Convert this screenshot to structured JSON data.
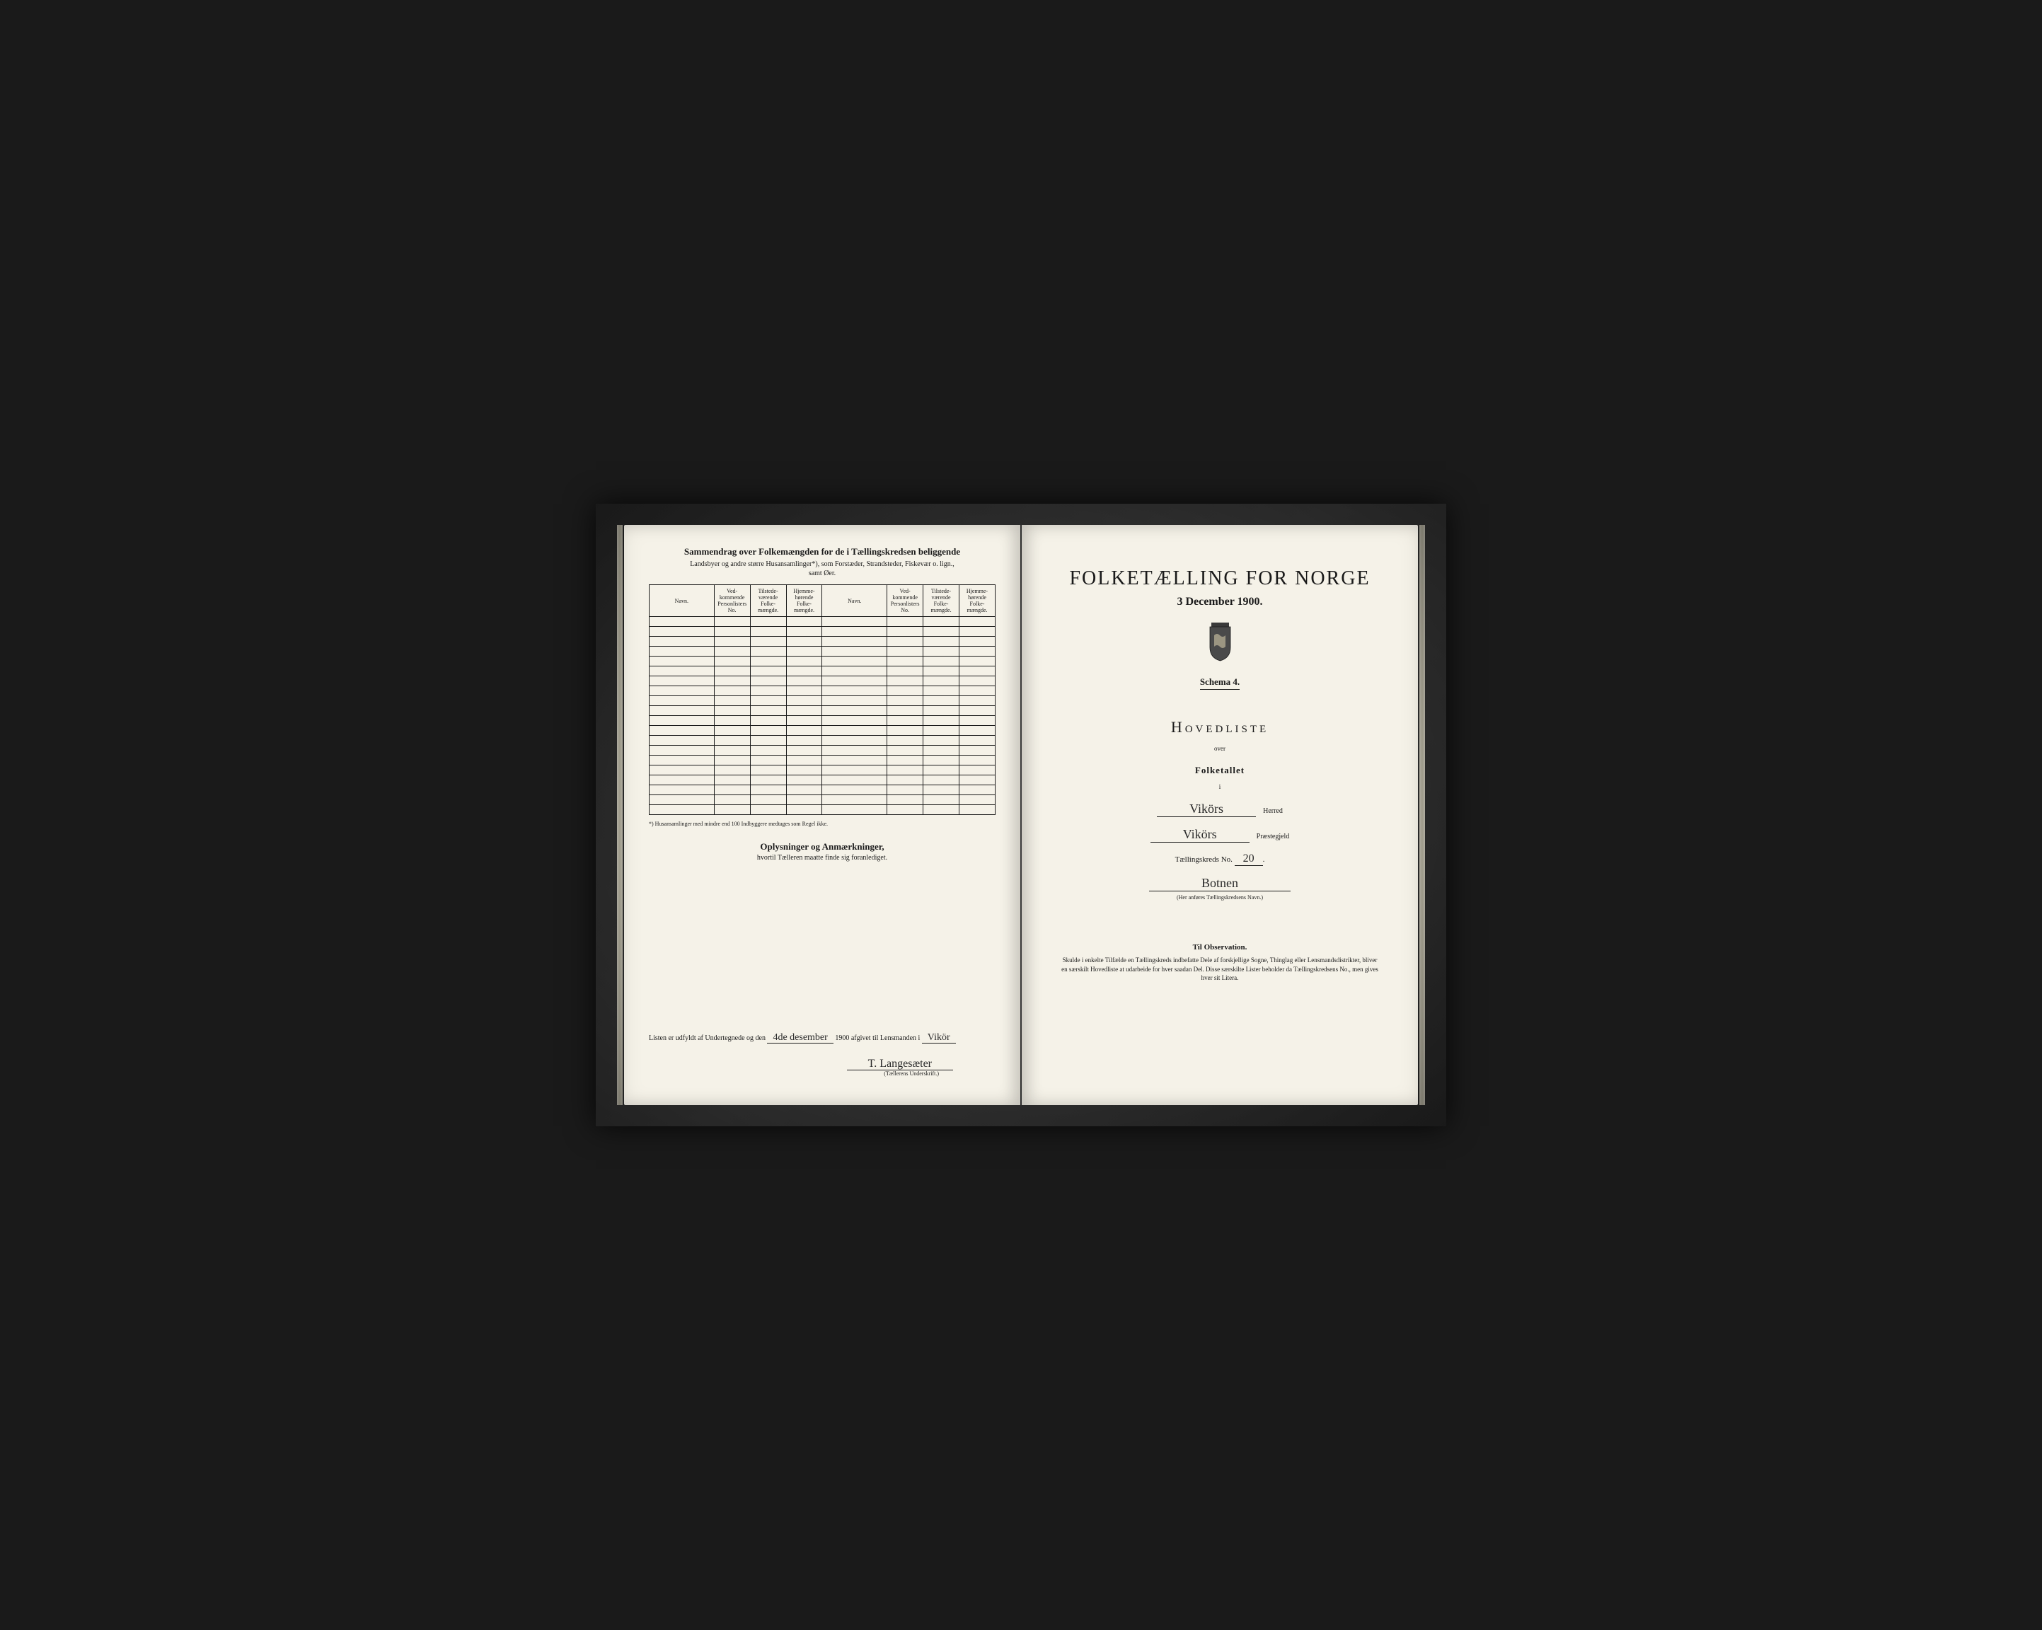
{
  "left_page": {
    "title": "Sammendrag over Folkemængden for de i Tællingskredsen beliggende",
    "subtitle1": "Landsbyer og andre større Husansamlinger*), som Forstæder, Strandsteder, Fiskevær o. lign.,",
    "subtitle2": "samt Øer.",
    "table": {
      "headers": {
        "navn": "Navn.",
        "vedkommende": "Ved-kommende Personlisters No.",
        "tilstede": "Tilstede-værende Folke-mængde.",
        "hjemme": "Hjemme-hørende Folke-mængde."
      },
      "row_count": 20
    },
    "footnote": "*) Husansamlinger med mindre end 100 Indbyggere medtages som Regel ikke.",
    "oplysninger_title": "Oplysninger og Anmærkninger,",
    "oplysninger_sub": "hvortil Tælleren maatte finde sig foranlediget.",
    "signature_prefix": "Listen er udfyldt af Undertegnede og den",
    "signature_date": "4de desember",
    "signature_year": "1900",
    "signature_mid": "afgivet til Lensmanden i",
    "signature_place": "Vikör",
    "signature_name": "T. Langesæter",
    "signature_label": "(Tællerens Underskrift.)"
  },
  "right_page": {
    "main_title": "FOLKETÆLLING FOR NORGE",
    "main_date": "3 December 1900.",
    "schema": "Schema 4.",
    "hovedliste": "Hovedliste",
    "over": "over",
    "folketallet": "Folketallet",
    "i": "i",
    "herred_value": "Vikörs",
    "herred_label": "Herred",
    "praestegjeld_value": "Vikörs",
    "praestegjeld_label": "Præstegjeld",
    "kreds_prefix": "Tællingskreds No.",
    "kreds_no": "20",
    "kreds_name": "Botnen",
    "kreds_caption": "(Her anføres Tællingskredsens Navn.)",
    "observation_title": "Til Observation.",
    "observation_text": "Skulde i enkelte Tilfælde en Tællingskreds indbefatte Dele af forskjellige Sogne, Thinglag eller Lensmandsdistrikter, bliver en særskilt Hovedliste at udarbeide for hver saadan Del. Disse særskilte Lister beholder da Tællingskredsens No., men gives hver sit Litera."
  },
  "styling": {
    "page_bg": "#f5f2e8",
    "frame_bg": "#1a1a1a",
    "text_color": "#1a1a1a",
    "handwriting_color": "#2a2a2a"
  }
}
